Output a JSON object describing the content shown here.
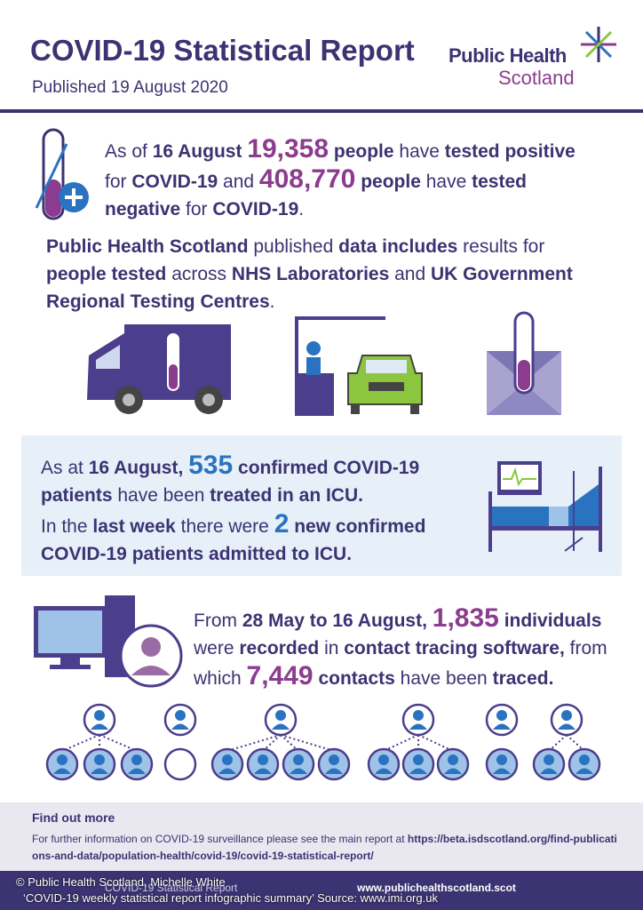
{
  "header": {
    "title": "COVID-19 Statistical Report",
    "published": "Published 19 August 2020",
    "logo_line1": "Public Health",
    "logo_line2": "Scotland"
  },
  "testing": {
    "runs": [
      "As of ",
      "16 August",
      " ",
      "19,358",
      " people",
      " have ",
      "tested positive",
      " for ",
      "COVID-19",
      " and ",
      "408,770",
      " people",
      " have ",
      "tested negative",
      " for ",
      "COVID-19",
      "."
    ],
    "source_runs": [
      "Public Health Scotland",
      " published ",
      "data includes",
      " results for ",
      "people tested",
      " across ",
      "NHS Laboratories",
      " and ",
      "UK Government Regional Testing Centres",
      "."
    ]
  },
  "icu": {
    "runs": [
      "As at ",
      "16 August,",
      " ",
      "535",
      " confirmed COVID-19 patients",
      " have been ",
      "treated in an ICU."
    ],
    "week_runs": [
      "In the ",
      "last week",
      " there were ",
      "2",
      " new confirmed COVID-19 patients admitted to ICU."
    ]
  },
  "tracing": {
    "runs": [
      "From ",
      "28 May to 16 August,",
      " ",
      "1,835",
      " individuals",
      " were ",
      "recorded",
      " in ",
      "contact tracing software,",
      " from which ",
      "7,449",
      " contacts",
      " have been ",
      "traced."
    ]
  },
  "footer": {
    "heading": "Find out more",
    "text": "For further information on COVID-19 surveillance please see the main report at ",
    "link": "https://beta.isdscotland.org/find-publications-and-data/population-health/covid-19/covid-19-statistical-report/",
    "bar_left": "COVID-19 Statistical Report",
    "bar_right": "www.publichealthscotland.scot"
  },
  "credit": {
    "line1": "© Public Health Scotland, Michelle White",
    "line2": "‘COVID-19 weekly statistical report infographic summary’ Source: www.imi.org.uk"
  }
}
